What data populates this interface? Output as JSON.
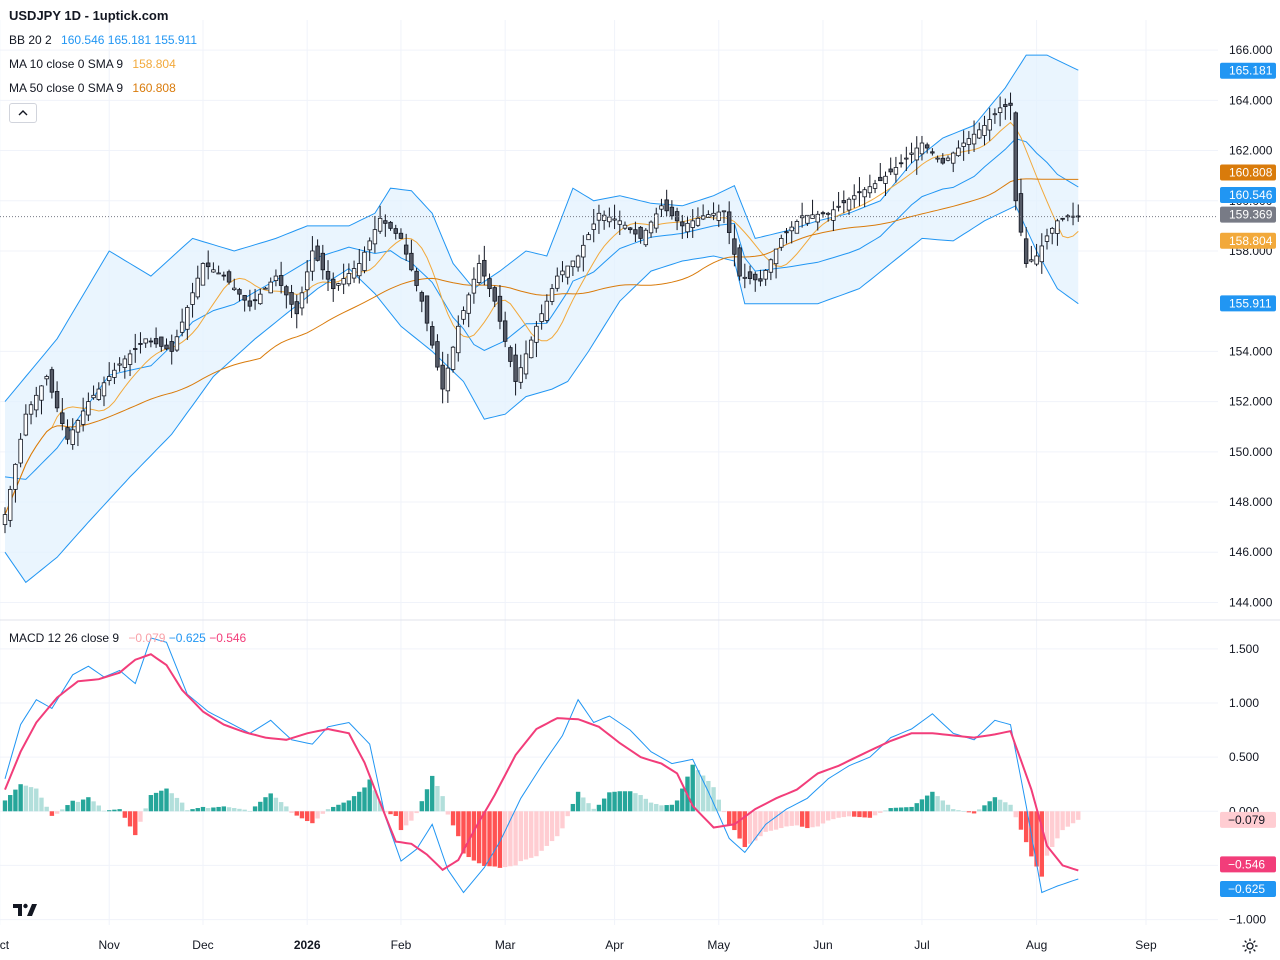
{
  "header": {
    "title": "USDJPY 1D - 1uptick.com",
    "bb_label": "BB 20 2",
    "bb_values": [
      "160.546",
      "165.181",
      "155.911"
    ],
    "ma10_label": "MA 10 close 0 SMA 9",
    "ma10_value": "158.804",
    "ma50_label": "MA 50 close 0 SMA 9",
    "ma50_value": "160.808",
    "macd_label": "MACD 12 26 close 9",
    "macd_values": [
      "−0.079",
      "−0.625",
      "−0.546"
    ]
  },
  "colors": {
    "bb": "#2196f3",
    "bb_fill": "#e3f2fd",
    "ma10": "#f2a93b",
    "ma50": "#d97b0b",
    "macd_line": "#2196f3",
    "signal_line": "#f23d7a",
    "hist_pos_strong": "#26a69a",
    "hist_pos_weak": "#b2dfdb",
    "hist_neg_strong": "#ff5252",
    "hist_neg_weak": "#ffcdd2",
    "candle": "#131722"
  },
  "chart_data": [
    {
      "type": "candlestick",
      "title": "USDJPY 1D - 1uptick.com",
      "x_ticks": [
        "Oct",
        "Nov",
        "Dec",
        "2026",
        "Feb",
        "Mar",
        "Apr",
        "May",
        "Jun",
        "Jul",
        "Aug",
        "Sep"
      ],
      "y_ticks": [
        "166.000",
        "164.000",
        "162.000",
        "160.000",
        "158.000",
        "154.000",
        "152.000",
        "150.000",
        "148.000",
        "146.000",
        "144.000"
      ],
      "ylim": [
        143.5,
        167.2
      ],
      "last_price": "159.369",
      "price_labels": [
        {
          "text": "165.181",
          "value": 165.181,
          "color": "#2196f3"
        },
        {
          "text": "160.808",
          "value": 160.808,
          "color": "#d97b0b"
        },
        {
          "text": "160.546",
          "value": 160.546,
          "color": "#2196f3"
        },
        {
          "text": "159.369",
          "value": 159.369,
          "color": "#787b86"
        },
        {
          "text": "158.804",
          "value": 158.804,
          "color": "#f2a93b"
        },
        {
          "text": "155.911",
          "value": 155.911,
          "color": "#2196f3"
        }
      ],
      "close_anchors": [
        [
          0,
          147.5
        ],
        [
          4,
          151.5
        ],
        [
          8,
          153.0
        ],
        [
          12,
          150.5
        ],
        [
          16,
          152.0
        ],
        [
          22,
          153.5
        ],
        [
          27,
          154.5
        ],
        [
          32,
          154.0
        ],
        [
          38,
          157.5
        ],
        [
          42,
          157.0
        ],
        [
          47,
          155.8
        ],
        [
          52,
          157.0
        ],
        [
          56,
          155.5
        ],
        [
          59,
          158.0
        ],
        [
          63,
          156.5
        ],
        [
          68,
          157.5
        ],
        [
          72,
          159.3
        ],
        [
          76,
          158.5
        ],
        [
          80,
          156.0
        ],
        [
          84,
          152.5
        ],
        [
          87,
          155.0
        ],
        [
          91,
          157.5
        ],
        [
          94,
          156.0
        ],
        [
          98,
          152.8
        ],
        [
          102,
          155.0
        ],
        [
          106,
          157.0
        ],
        [
          110,
          157.8
        ],
        [
          114,
          159.5
        ],
        [
          118,
          159.2
        ],
        [
          122,
          158.5
        ],
        [
          126,
          159.8
        ],
        [
          130,
          159.0
        ],
        [
          134,
          159.4
        ],
        [
          138,
          159.6
        ],
        [
          141,
          157.0
        ],
        [
          145,
          156.8
        ],
        [
          149,
          158.5
        ],
        [
          153,
          159.4
        ],
        [
          158,
          159.5
        ],
        [
          163,
          160.2
        ],
        [
          168,
          160.8
        ],
        [
          172,
          161.5
        ],
        [
          176,
          162.3
        ],
        [
          180,
          161.5
        ],
        [
          184,
          162.3
        ],
        [
          188,
          163.0
        ],
        [
          191,
          163.7
        ],
        [
          193,
          163.8
        ],
        [
          194,
          160.0
        ],
        [
          196,
          157.5
        ],
        [
          198,
          157.8
        ],
        [
          200,
          158.6
        ],
        [
          202,
          159.2
        ],
        [
          204,
          159.4
        ],
        [
          206,
          159.37
        ]
      ],
      "bb_upper_anchors": [
        [
          0,
          152.0
        ],
        [
          10,
          154.5
        ],
        [
          20,
          158.0
        ],
        [
          28,
          157.0
        ],
        [
          36,
          158.5
        ],
        [
          44,
          158.0
        ],
        [
          52,
          158.5
        ],
        [
          58,
          159.0
        ],
        [
          66,
          159.0
        ],
        [
          71,
          159.5
        ],
        [
          74,
          160.5
        ],
        [
          78,
          160.4
        ],
        [
          82,
          159.5
        ],
        [
          86,
          157.5
        ],
        [
          90,
          156.5
        ],
        [
          95,
          157.2
        ],
        [
          100,
          158.0
        ],
        [
          104,
          157.8
        ],
        [
          109,
          160.5
        ],
        [
          113,
          160.0
        ],
        [
          118,
          160.2
        ],
        [
          124,
          159.9
        ],
        [
          130,
          159.8
        ],
        [
          136,
          160.2
        ],
        [
          140,
          160.6
        ],
        [
          144,
          158.5
        ],
        [
          150,
          158.8
        ],
        [
          156,
          159.2
        ],
        [
          162,
          159.5
        ],
        [
          168,
          160.0
        ],
        [
          174,
          161.5
        ],
        [
          180,
          162.5
        ],
        [
          186,
          163.0
        ],
        [
          192,
          164.5
        ],
        [
          196,
          165.8
        ],
        [
          200,
          165.8
        ],
        [
          206,
          165.2
        ]
      ],
      "bb_lower_anchors": [
        [
          0,
          146.0
        ],
        [
          4,
          144.8
        ],
        [
          10,
          145.8
        ],
        [
          16,
          147.2
        ],
        [
          24,
          149.0
        ],
        [
          32,
          150.7
        ],
        [
          40,
          153.0
        ],
        [
          48,
          154.5
        ],
        [
          54,
          155.5
        ],
        [
          60,
          156.5
        ],
        [
          66,
          157.3
        ],
        [
          71,
          156.3
        ],
        [
          76,
          155.0
        ],
        [
          82,
          154.0
        ],
        [
          88,
          152.8
        ],
        [
          92,
          151.3
        ],
        [
          96,
          151.5
        ],
        [
          100,
          152.2
        ],
        [
          105,
          152.5
        ],
        [
          108,
          152.8
        ],
        [
          112,
          154.0
        ],
        [
          118,
          156.0
        ],
        [
          124,
          157.2
        ],
        [
          130,
          157.6
        ],
        [
          136,
          157.8
        ],
        [
          140,
          157.6
        ],
        [
          142,
          155.9
        ],
        [
          148,
          155.9
        ],
        [
          156,
          155.9
        ],
        [
          164,
          156.5
        ],
        [
          170,
          157.5
        ],
        [
          176,
          158.5
        ],
        [
          182,
          158.4
        ],
        [
          188,
          159.2
        ],
        [
          194,
          159.8
        ],
        [
          198,
          158.0
        ],
        [
          202,
          156.5
        ],
        [
          206,
          155.9
        ]
      ]
    },
    {
      "type": "line",
      "title": "MACD 12 26 close 9",
      "y_ticks": [
        "1.500",
        "1.000",
        "0.500",
        "0.000",
        "−0.500",
        "−1.000"
      ],
      "ylim": [
        -1.05,
        1.72
      ],
      "series": [
        {
          "name": "MACD",
          "anchors": [
            [
              0,
              0.3
            ],
            [
              3,
              0.8
            ],
            [
              6,
              1.03
            ],
            [
              9,
              0.95
            ],
            [
              13,
              1.26
            ],
            [
              16,
              1.34
            ],
            [
              19,
              1.24
            ],
            [
              22,
              1.3
            ],
            [
              25,
              1.18
            ],
            [
              28,
              1.6
            ],
            [
              31,
              1.56
            ],
            [
              35,
              1.08
            ],
            [
              39,
              0.92
            ],
            [
              43,
              0.82
            ],
            [
              47,
              0.72
            ],
            [
              51,
              0.84
            ],
            [
              55,
              0.66
            ],
            [
              59,
              0.62
            ],
            [
              62,
              0.78
            ],
            [
              66,
              0.82
            ],
            [
              70,
              0.62
            ],
            [
              73,
              -0.05
            ],
            [
              76,
              -0.46
            ],
            [
              79,
              -0.35
            ],
            [
              82,
              -0.12
            ],
            [
              85,
              -0.54
            ],
            [
              88,
              -0.75
            ],
            [
              92,
              -0.52
            ],
            [
              95,
              -0.28
            ],
            [
              99,
              0.12
            ],
            [
              103,
              0.42
            ],
            [
              107,
              0.7
            ],
            [
              110,
              1.03
            ],
            [
              113,
              0.82
            ],
            [
              116,
              0.88
            ],
            [
              120,
              0.75
            ],
            [
              124,
              0.55
            ],
            [
              128,
              0.44
            ],
            [
              132,
              0.48
            ],
            [
              135,
              0.18
            ],
            [
              139,
              -0.25
            ],
            [
              142,
              -0.38
            ],
            [
              146,
              -0.12
            ],
            [
              150,
              0.02
            ],
            [
              154,
              0.12
            ],
            [
              158,
              0.3
            ],
            [
              162,
              0.42
            ],
            [
              166,
              0.5
            ],
            [
              170,
              0.68
            ],
            [
              174,
              0.76
            ],
            [
              178,
              0.9
            ],
            [
              182,
              0.72
            ],
            [
              186,
              0.66
            ],
            [
              190,
              0.84
            ],
            [
              193,
              0.8
            ],
            [
              196,
              0.05
            ],
            [
              199,
              -0.75
            ],
            [
              202,
              -0.69
            ],
            [
              206,
              -0.625
            ]
          ]
        },
        {
          "name": "Signal",
          "anchors": [
            [
              0,
              0.2
            ],
            [
              3,
              0.55
            ],
            [
              6,
              0.82
            ],
            [
              10,
              1.05
            ],
            [
              14,
              1.2
            ],
            [
              18,
              1.22
            ],
            [
              22,
              1.28
            ],
            [
              25,
              1.4
            ],
            [
              28,
              1.45
            ],
            [
              31,
              1.35
            ],
            [
              34,
              1.12
            ],
            [
              38,
              0.92
            ],
            [
              42,
              0.8
            ],
            [
              46,
              0.73
            ],
            [
              50,
              0.68
            ],
            [
              54,
              0.66
            ],
            [
              58,
              0.72
            ],
            [
              62,
              0.76
            ],
            [
              66,
              0.72
            ],
            [
              69,
              0.45
            ],
            [
              72,
              0.08
            ],
            [
              75,
              -0.28
            ],
            [
              78,
              -0.3
            ],
            [
              81,
              -0.4
            ],
            [
              84,
              -0.54
            ],
            [
              87,
              -0.45
            ],
            [
              90,
              -0.18
            ],
            [
              94,
              0.15
            ],
            [
              98,
              0.52
            ],
            [
              102,
              0.76
            ],
            [
              106,
              0.86
            ],
            [
              110,
              0.85
            ],
            [
              114,
              0.78
            ],
            [
              118,
              0.63
            ],
            [
              122,
              0.5
            ],
            [
              126,
              0.44
            ],
            [
              129,
              0.35
            ],
            [
              132,
              0.05
            ],
            [
              136,
              -0.15
            ],
            [
              140,
              -0.12
            ],
            [
              144,
              0.02
            ],
            [
              148,
              0.12
            ],
            [
              152,
              0.2
            ],
            [
              156,
              0.35
            ],
            [
              160,
              0.42
            ],
            [
              166,
              0.56
            ],
            [
              170,
              0.65
            ],
            [
              174,
              0.72
            ],
            [
              178,
              0.72
            ],
            [
              182,
              0.7
            ],
            [
              186,
              0.68
            ],
            [
              190,
              0.71
            ],
            [
              193,
              0.74
            ],
            [
              197,
              0.2
            ],
            [
              200,
              -0.32
            ],
            [
              203,
              -0.5
            ],
            [
              206,
              -0.546
            ]
          ]
        }
      ],
      "histogram_last": "−0.079"
    }
  ]
}
